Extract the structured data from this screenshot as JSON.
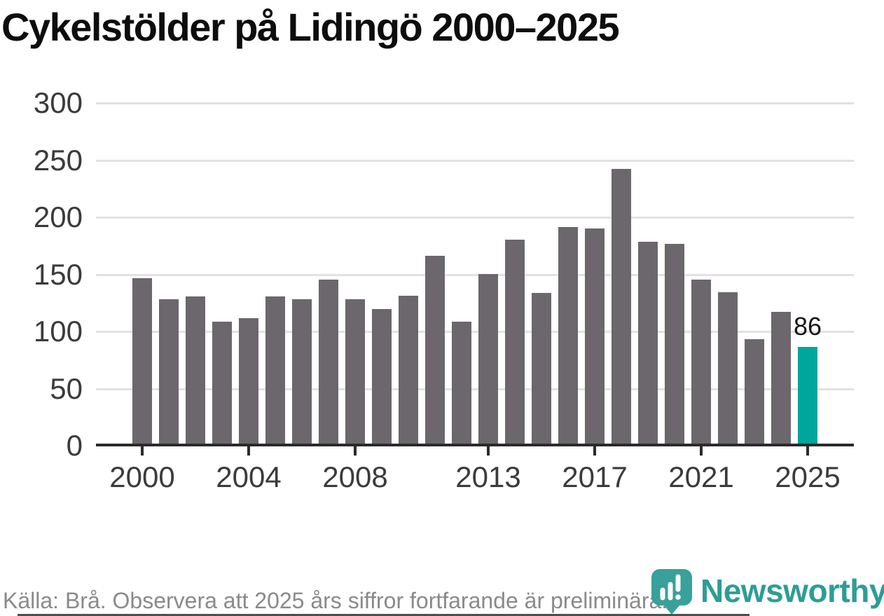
{
  "title": "Cykelstölder på Lidingö 2000–2025",
  "footer": {
    "source_note": "Källa: Brå. Observera att 2025 års siffror fortfarande är preliminära."
  },
  "branding": {
    "logo_text": "Newsworthy",
    "logo_icon": "bar-chart-pin-icon",
    "logo_color": "#38a199",
    "logo_text_color": "#2d9d95"
  },
  "colors": {
    "bar": "#6b676d",
    "highlight": "#00a69c",
    "gridline": "#e2e2e2",
    "axis": "#2b2b2b",
    "tick_label": "#3b3b3b",
    "title": "#0d0d0d",
    "source": "#8a8a8a"
  },
  "chart_data": {
    "type": "bar",
    "title": "Cykelstölder på Lidingö 2000–2025",
    "categories": [
      2000,
      2001,
      2002,
      2003,
      2004,
      2005,
      2006,
      2007,
      2008,
      2009,
      2010,
      2011,
      2012,
      2013,
      2014,
      2015,
      2016,
      2017,
      2018,
      2019,
      2020,
      2021,
      2022,
      2023,
      2024,
      2025
    ],
    "values": [
      146,
      128,
      130,
      108,
      111,
      130,
      128,
      145,
      128,
      119,
      131,
      166,
      108,
      150,
      180,
      133,
      191,
      190,
      242,
      178,
      176,
      145,
      134,
      93,
      117,
      86
    ],
    "highlight_index": 25,
    "annotations": [
      {
        "index": 25,
        "text": "86"
      }
    ],
    "xlabel": "",
    "ylabel": "",
    "ylim": [
      0,
      300
    ],
    "yticks": [
      0,
      50,
      100,
      150,
      200,
      250,
      300
    ],
    "xtick_labels": [
      "2000",
      "2004",
      "2008",
      "2013",
      "2017",
      "2021",
      "2025"
    ],
    "grid": "horizontal",
    "legend": "none"
  }
}
